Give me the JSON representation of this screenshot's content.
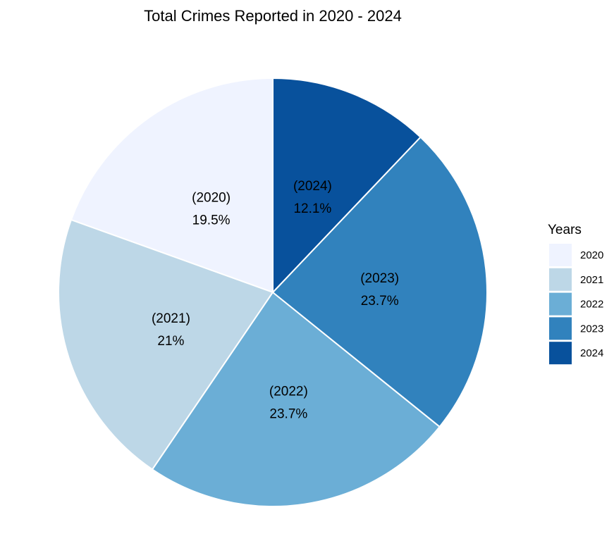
{
  "chart_data": {
    "type": "pie",
    "title": "Total Crimes Reported in 2020 - 2024",
    "legend": {
      "title": "Years",
      "position": "right"
    },
    "slices": [
      {
        "category": "2020",
        "label_top": "(2020)",
        "label_bottom": "19.5%",
        "value": 19.5,
        "color": "#EFF3FF"
      },
      {
        "category": "2021",
        "label_top": "(2021)",
        "label_bottom": "21%",
        "value": 21.0,
        "color": "#BDD7E7"
      },
      {
        "category": "2022",
        "label_top": "(2022)",
        "label_bottom": "23.7%",
        "value": 23.7,
        "color": "#6BAED6"
      },
      {
        "category": "2023",
        "label_top": "(2023)",
        "label_bottom": "23.7%",
        "value": 23.7,
        "color": "#3182BD"
      },
      {
        "category": "2024",
        "label_top": "(2024)",
        "label_bottom": "12.1%",
        "value": 12.1,
        "color": "#08519C"
      }
    ]
  }
}
